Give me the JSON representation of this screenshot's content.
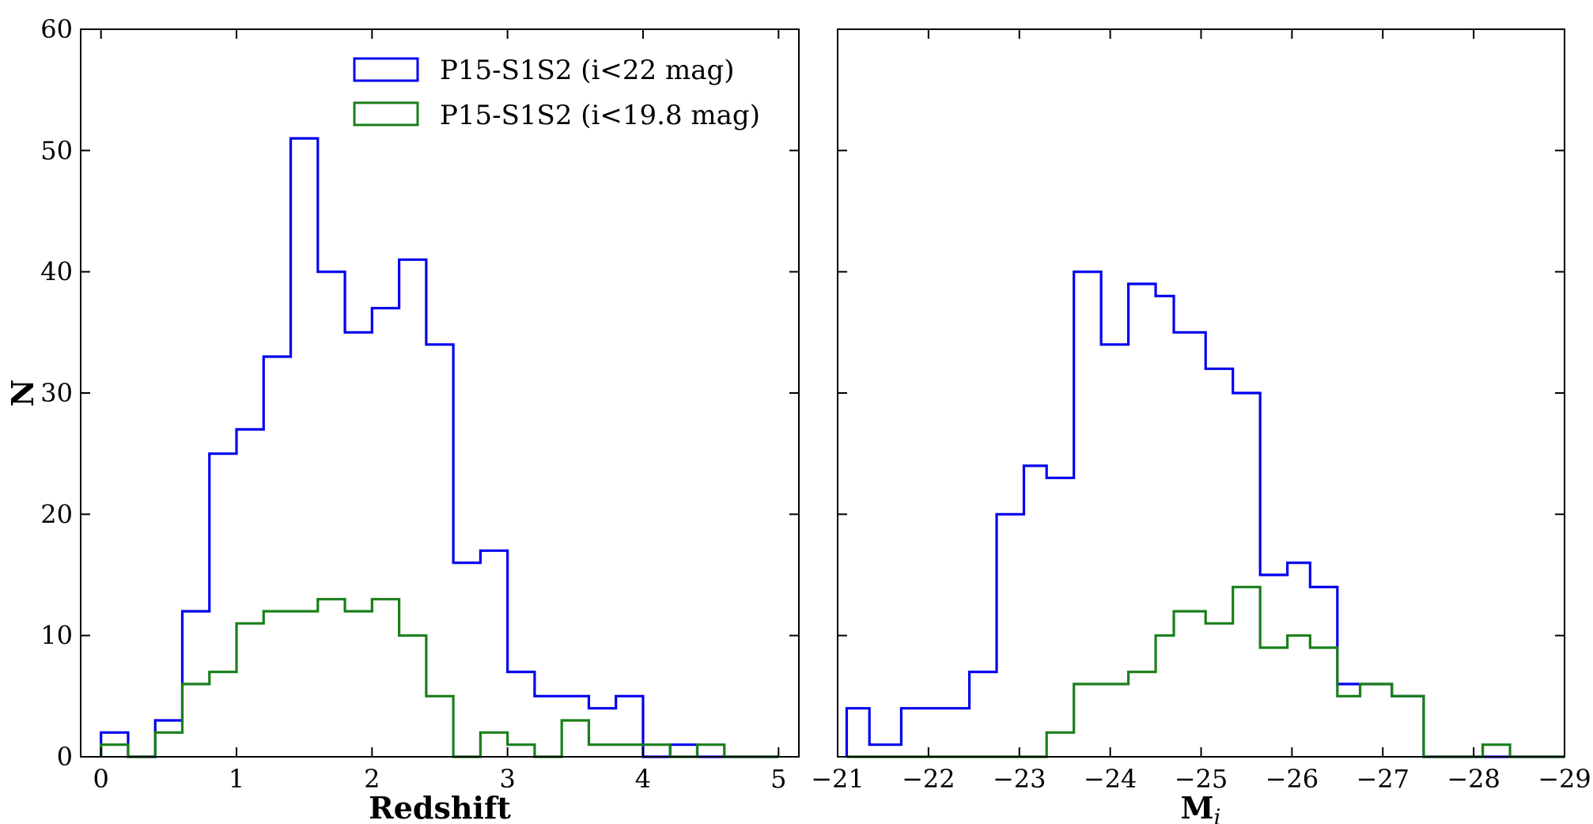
{
  "chart_data": [
    {
      "type": "histogram",
      "panel": "left",
      "xlabel": "Redshift",
      "ylabel": "N",
      "xlim": [
        -0.15,
        5.15
      ],
      "ylim": [
        0,
        60
      ],
      "xticks": [
        0,
        1,
        2,
        3,
        4,
        5
      ],
      "yticks": [
        0,
        10,
        20,
        30,
        40,
        50,
        60
      ],
      "xtick_labels": [
        "0",
        "1",
        "2",
        "3",
        "4",
        "5"
      ],
      "ytick_labels": [
        "0",
        "10",
        "20",
        "30",
        "40",
        "50",
        "60"
      ],
      "bin_edges": [
        0,
        0.2,
        0.4,
        0.6,
        0.8,
        1.0,
        1.2,
        1.4,
        1.6,
        1.8,
        2.0,
        2.2,
        2.4,
        2.6,
        2.8,
        3.0,
        3.2,
        3.4,
        3.6,
        3.8,
        4.0,
        4.2,
        4.4,
        4.6,
        4.8,
        5.0
      ],
      "legend_position": "upper-right",
      "series": [
        {
          "name": "P15-S1S2 (i<22 mag)",
          "color": "#0000ee",
          "values": [
            2,
            0,
            3,
            12,
            25,
            27,
            33,
            51,
            40,
            35,
            37,
            41,
            34,
            16,
            17,
            7,
            5,
            5,
            4,
            5,
            0,
            1,
            0,
            0,
            0
          ]
        },
        {
          "name": "P15-S1S2 (i<19.8 mag)",
          "color": "#1a7f1a",
          "values": [
            1,
            0,
            2,
            6,
            7,
            11,
            12,
            12,
            13,
            12,
            13,
            10,
            5,
            0,
            2,
            1,
            0,
            3,
            1,
            1,
            1,
            0,
            1,
            0,
            0
          ]
        }
      ]
    },
    {
      "type": "histogram",
      "panel": "right",
      "xlabel": "M",
      "xlabel_subscript": "i",
      "ylabel": "",
      "xlim": [
        -21,
        -29
      ],
      "ylim": [
        0,
        60
      ],
      "xticks": [
        -21,
        -22,
        -23,
        -24,
        -25,
        -26,
        -27,
        -28,
        -29
      ],
      "yticks": [
        0,
        10,
        20,
        30,
        40,
        50,
        60
      ],
      "xtick_labels": [
        "−21",
        "−22",
        "−23",
        "−24",
        "−25",
        "−26",
        "−27",
        "−28",
        "−29"
      ],
      "bin_edges": [
        -21.1,
        -21.35,
        -21.7,
        -22.1,
        -22.45,
        -22.75,
        -23.05,
        -23.3,
        -23.6,
        -23.9,
        -24.2,
        -24.5,
        -24.7,
        -25.05,
        -25.35,
        -25.65,
        -25.95,
        -26.2,
        -26.5,
        -26.75,
        -27.1,
        -27.45,
        -27.8,
        -28.1,
        -28.4,
        -28.7,
        -29.0
      ],
      "series": [
        {
          "name": "P15-S1S2 (i<22 mag)",
          "color": "#0000ee",
          "values": [
            4,
            1,
            4,
            4,
            7,
            20,
            24,
            23,
            40,
            34,
            39,
            38,
            35,
            32,
            30,
            15,
            16,
            14,
            6,
            6,
            5,
            0,
            0,
            0,
            0,
            0
          ]
        },
        {
          "name": "P15-S1S2 (i<19.8 mag)",
          "color": "#1a7f1a",
          "values": [
            0,
            0,
            0,
            0,
            0,
            0,
            0,
            2,
            6,
            6,
            7,
            10,
            12,
            11,
            14,
            9,
            10,
            9,
            5,
            6,
            5,
            0,
            0,
            1,
            0,
            0
          ]
        }
      ]
    }
  ]
}
